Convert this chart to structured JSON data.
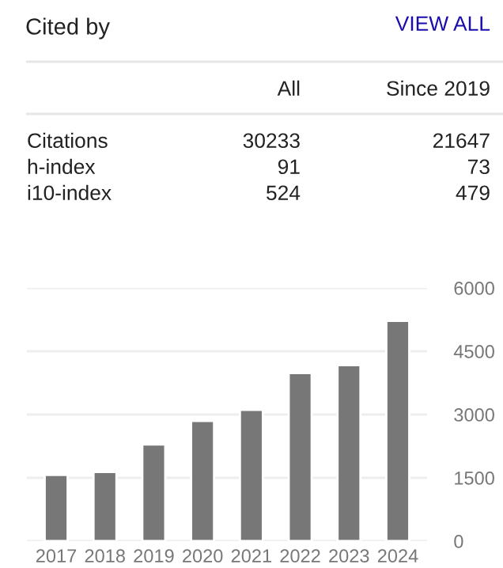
{
  "chart_data": [
    {
      "type": "other",
      "title": "Cited by",
      "annotations": [
        "VIEW ALL",
        "All",
        "Since 2019",
        "Citations",
        "30233",
        "21647",
        "h-index",
        "91",
        "73",
        "i10-index",
        "524",
        "479"
      ]
    },
    {
      "type": "bar",
      "categories": [
        "2017",
        "2018",
        "2019",
        "2020",
        "2021",
        "2022",
        "2023",
        "2024"
      ],
      "values": [
        1570,
        1640,
        2290,
        2850,
        3110,
        3980,
        4170,
        5220
      ],
      "color": "#777777",
      "ylim": [
        0,
        6000
      ],
      "yticks": [
        0,
        1500,
        3000,
        4500,
        6000
      ],
      "grid": "y"
    }
  ]
}
